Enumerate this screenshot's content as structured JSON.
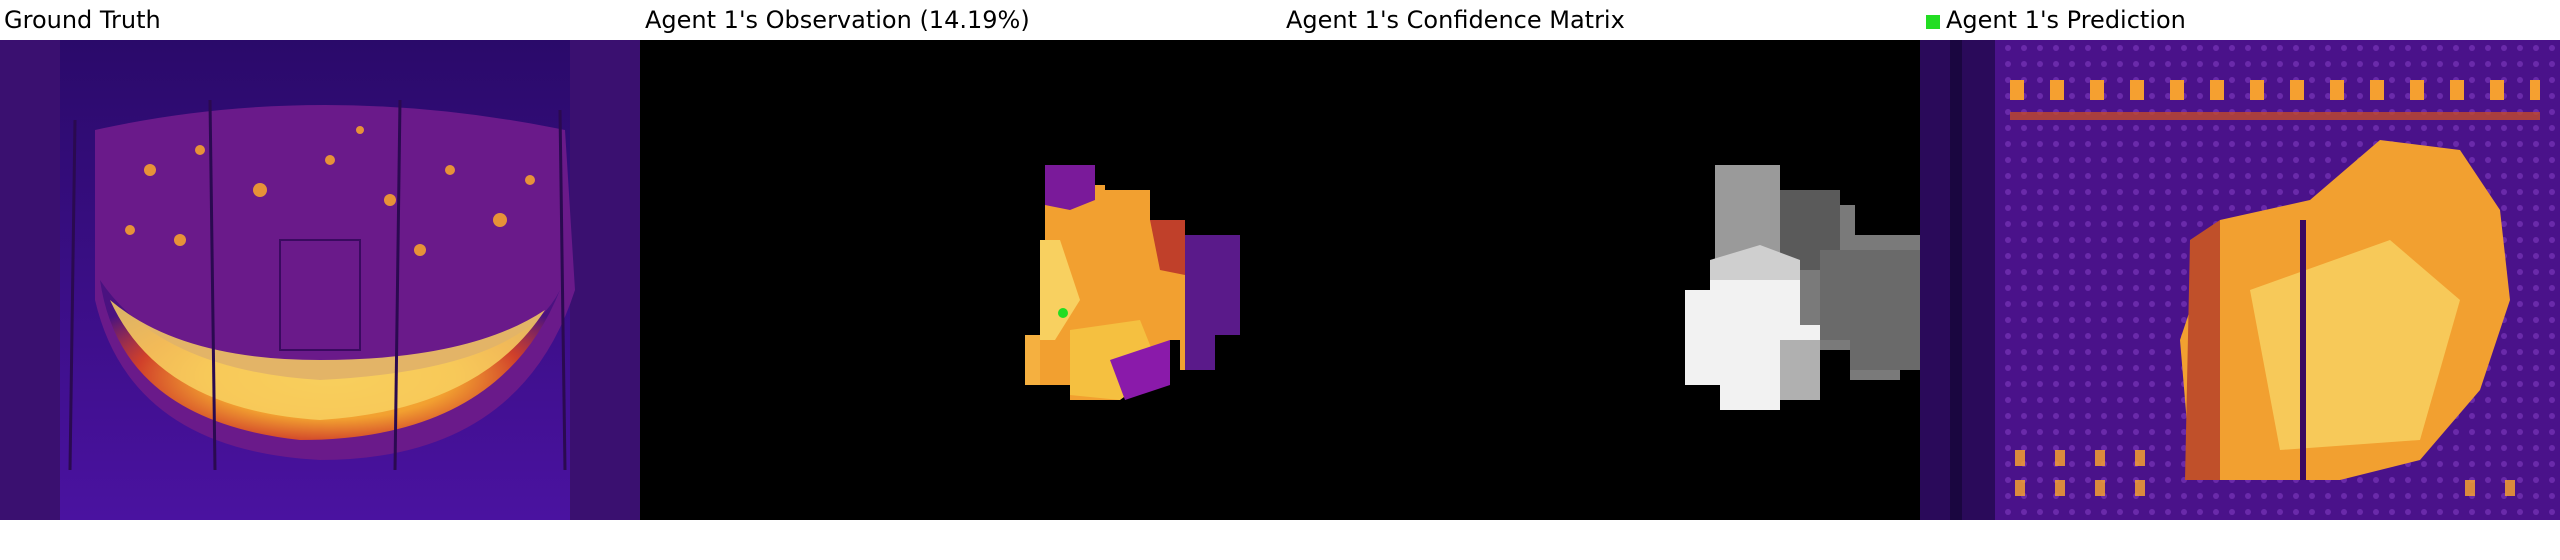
{
  "panels": [
    {
      "title": "Ground Truth"
    },
    {
      "title": "Agent 1's Observation (14.19%)"
    },
    {
      "title": "Agent 1's Confidence Matrix"
    },
    {
      "title": "Agent 1's Prediction",
      "legend_color": "#22dd22"
    }
  ],
  "colors": {
    "inferno_dark": "#1a0a4a",
    "inferno_purple": "#5a1a9a",
    "inferno_orange": "#f08020",
    "inferno_yellow": "#ffd030",
    "agent_marker": "#22dd22"
  }
}
